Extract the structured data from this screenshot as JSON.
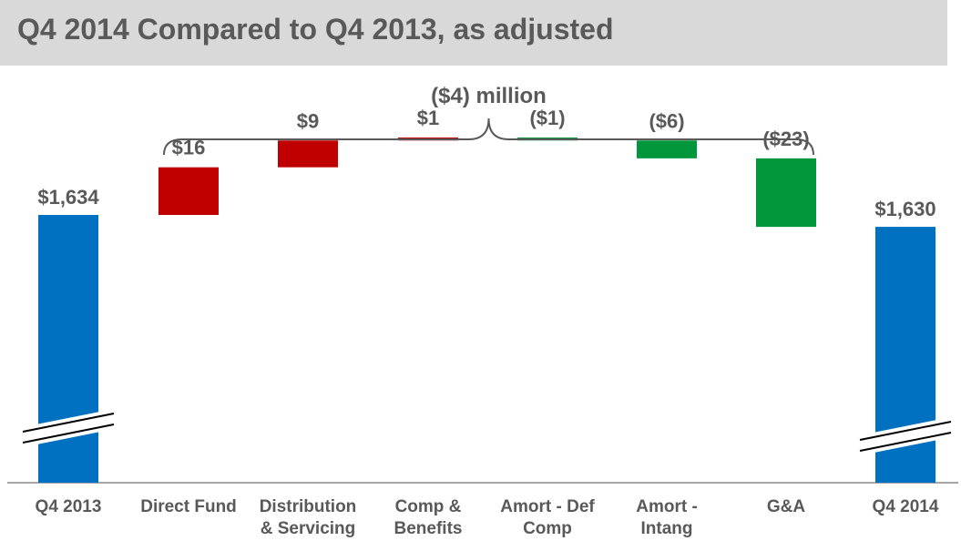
{
  "title": "Q4 2014 Compared to Q4 2013, as adjusted",
  "colors": {
    "total": "#0070c0",
    "increase": "#c00000",
    "decrease": "#00963c",
    "text": "#595959",
    "axis": "#a6a6a6"
  },
  "chart_data": {
    "type": "bar",
    "subtype": "waterfall",
    "axis_break": true,
    "categories": [
      [
        "Q4 2013"
      ],
      [
        "Direct Fund"
      ],
      [
        "Distribution",
        "& Servicing"
      ],
      [
        "Comp &",
        "Benefits"
      ],
      [
        "Amort - Def",
        "Comp"
      ],
      [
        "Amort -",
        "Intang"
      ],
      [
        "G&A"
      ],
      [
        "Q4 2014"
      ]
    ],
    "values": [
      1634,
      16,
      9,
      1,
      -1,
      -6,
      -23,
      1630
    ],
    "kinds": [
      "total",
      "increase",
      "increase",
      "increase",
      "decrease",
      "decrease",
      "decrease",
      "total"
    ],
    "value_labels": [
      "$1,634",
      "$16",
      "$9",
      "$1",
      "($1)",
      "($6)",
      "($23)",
      "$1,630"
    ],
    "bracket_label": "($4) million"
  }
}
